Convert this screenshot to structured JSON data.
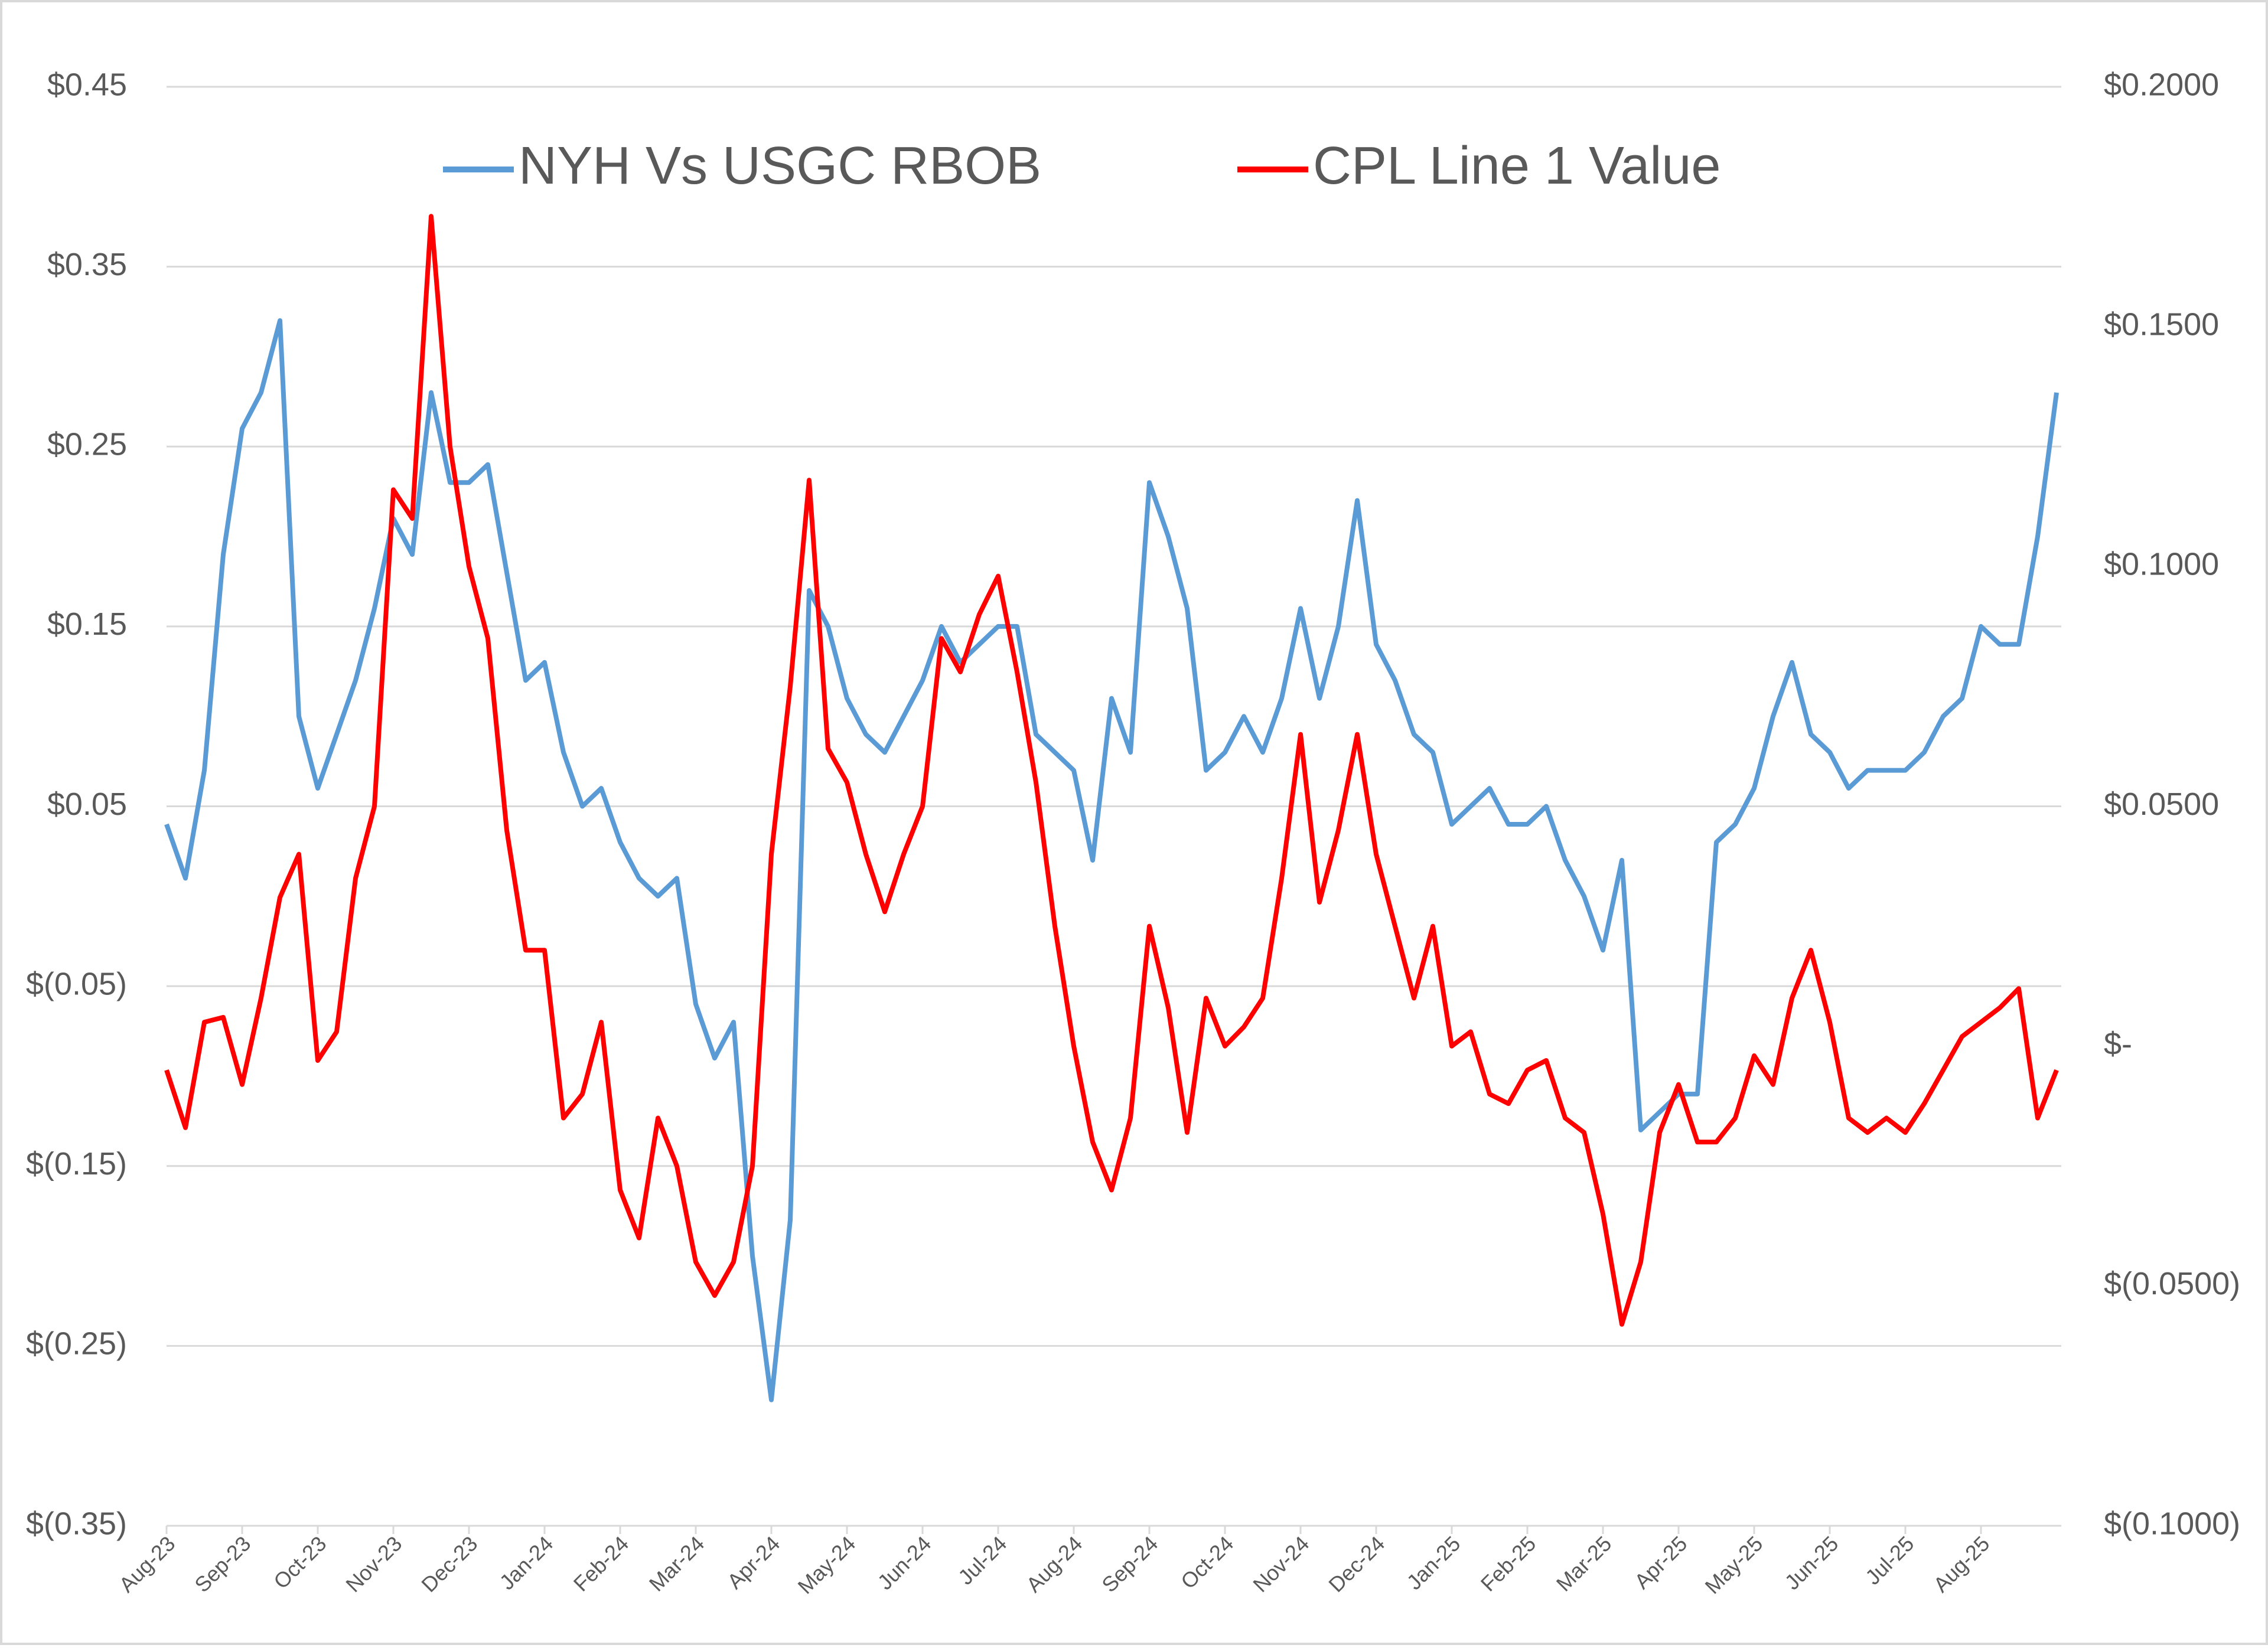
{
  "chart_data": {
    "type": "line",
    "x": [
      "Aug-23",
      "Aug-23",
      "Aug-23",
      "Aug-23",
      "Sep-23",
      "Sep-23",
      "Sep-23",
      "Sep-23",
      "Oct-23",
      "Oct-23",
      "Oct-23",
      "Oct-23",
      "Nov-23",
      "Nov-23",
      "Nov-23",
      "Nov-23",
      "Dec-23",
      "Dec-23",
      "Dec-23",
      "Dec-23",
      "Jan-24",
      "Jan-24",
      "Jan-24",
      "Jan-24",
      "Feb-24",
      "Feb-24",
      "Feb-24",
      "Feb-24",
      "Mar-24",
      "Mar-24",
      "Mar-24",
      "Mar-24",
      "Apr-24",
      "Apr-24",
      "Apr-24",
      "Apr-24",
      "May-24",
      "May-24",
      "May-24",
      "May-24",
      "Jun-24",
      "Jun-24",
      "Jun-24",
      "Jun-24",
      "Jul-24",
      "Jul-24",
      "Jul-24",
      "Jul-24",
      "Aug-24",
      "Aug-24",
      "Aug-24",
      "Aug-24",
      "Sep-24",
      "Sep-24",
      "Sep-24",
      "Sep-24",
      "Oct-24",
      "Oct-24",
      "Oct-24",
      "Oct-24",
      "Nov-24",
      "Nov-24",
      "Nov-24",
      "Nov-24",
      "Dec-24",
      "Dec-24",
      "Dec-24",
      "Dec-24",
      "Jan-25",
      "Jan-25",
      "Jan-25",
      "Jan-25",
      "Feb-25",
      "Feb-25",
      "Feb-25",
      "Feb-25",
      "Mar-25",
      "Mar-25",
      "Mar-25",
      "Mar-25",
      "Apr-25",
      "Apr-25",
      "Apr-25",
      "Apr-25",
      "May-25",
      "May-25",
      "May-25",
      "May-25",
      "Jun-25",
      "Jun-25",
      "Jun-25",
      "Jun-25",
      "Jul-25",
      "Jul-25",
      "Jul-25",
      "Jul-25",
      "Aug-25",
      "Aug-25",
      "Aug-25",
      "Aug-25",
      "Aug-25"
    ],
    "series": [
      {
        "name": "NYH Vs USGC RBOB",
        "color": "#5b9bd5",
        "axis": "y",
        "values": [
          0.04,
          0.01,
          0.07,
          0.19,
          0.26,
          0.28,
          0.32,
          0.1,
          0.06,
          0.09,
          0.12,
          0.16,
          0.21,
          0.19,
          0.28,
          0.23,
          0.23,
          0.24,
          0.18,
          0.12,
          0.13,
          0.08,
          0.05,
          0.06,
          0.03,
          0.01,
          0.0,
          0.01,
          -0.06,
          -0.09,
          -0.07,
          -0.2,
          -0.28,
          -0.18,
          0.17,
          0.15,
          0.11,
          0.09,
          0.08,
          0.1,
          0.12,
          0.15,
          0.13,
          0.14,
          0.15,
          0.15,
          0.09,
          0.08,
          0.07,
          0.02,
          0.11,
          0.08,
          0.23,
          0.2,
          0.16,
          0.07,
          0.08,
          0.1,
          0.08,
          0.11,
          0.16,
          0.11,
          0.15,
          0.22,
          0.14,
          0.12,
          0.09,
          0.08,
          0.04,
          0.05,
          0.06,
          0.04,
          0.04,
          0.05,
          0.02,
          0.0,
          -0.03,
          0.02,
          -0.13,
          -0.12,
          -0.11,
          -0.11,
          0.03,
          0.04,
          0.06,
          0.1,
          0.13,
          0.09,
          0.08,
          0.06,
          0.07,
          0.07,
          0.07,
          0.08,
          0.1,
          0.11,
          0.15,
          0.14,
          0.14,
          0.2,
          0.28
        ]
      },
      {
        "name": "CPL Line 1 Value",
        "color": "#ff0000",
        "axis": "y2",
        "values": [
          -0.005,
          -0.017,
          0.005,
          0.006,
          -0.008,
          0.01,
          0.031,
          0.04,
          -0.003,
          0.003,
          0.035,
          0.05,
          0.116,
          0.11,
          0.173,
          0.125,
          0.1,
          0.085,
          0.045,
          0.02,
          0.02,
          -0.015,
          -0.01,
          0.005,
          -0.03,
          -0.04,
          -0.015,
          -0.025,
          -0.045,
          -0.052,
          -0.045,
          -0.025,
          0.04,
          0.075,
          0.118,
          0.062,
          0.055,
          0.04,
          0.028,
          0.04,
          0.05,
          0.085,
          0.078,
          0.09,
          0.098,
          0.078,
          0.055,
          0.025,
          0.0,
          -0.02,
          -0.03,
          -0.015,
          0.025,
          0.008,
          -0.018,
          0.01,
          0.0,
          0.004,
          0.01,
          0.035,
          0.065,
          0.03,
          0.045,
          0.065,
          0.04,
          0.025,
          0.01,
          0.025,
          0.0,
          0.003,
          -0.01,
          -0.012,
          -0.005,
          -0.003,
          -0.015,
          -0.018,
          -0.035,
          -0.058,
          -0.045,
          -0.018,
          -0.008,
          -0.02,
          -0.02,
          -0.015,
          -0.002,
          -0.008,
          0.01,
          0.02,
          0.005,
          -0.015,
          -0.018,
          -0.015,
          -0.018,
          -0.012,
          -0.005,
          0.002,
          0.005,
          0.008,
          0.012,
          -0.015,
          -0.005
        ]
      }
    ],
    "ylim": [
      -0.35,
      0.45
    ],
    "yticks": [
      {
        "value": 0.45,
        "label": "$0.45"
      },
      {
        "value": 0.35,
        "label": "$0.35"
      },
      {
        "value": 0.25,
        "label": "$0.25"
      },
      {
        "value": 0.15,
        "label": "$0.15"
      },
      {
        "value": 0.05,
        "label": "$0.05"
      },
      {
        "value": -0.05,
        "label": "$(0.05)"
      },
      {
        "value": -0.15,
        "label": "$(0.15)"
      },
      {
        "value": -0.25,
        "label": "$(0.25)"
      },
      {
        "value": -0.35,
        "label": "$(0.35)"
      }
    ],
    "y2lim": [
      -0.1,
      0.2
    ],
    "y2ticks": [
      {
        "value": 0.2,
        "label": "$0.2000"
      },
      {
        "value": 0.15,
        "label": "$0.1500"
      },
      {
        "value": 0.1,
        "label": "$0.1000"
      },
      {
        "value": 0.05,
        "label": "$0.0500"
      },
      {
        "value": 0,
        "label": "$-"
      },
      {
        "value": -0.05,
        "label": "$(0.0500)"
      },
      {
        "value": -0.1,
        "label": "$(0.1000)"
      }
    ],
    "grid": true,
    "legend": "top"
  }
}
